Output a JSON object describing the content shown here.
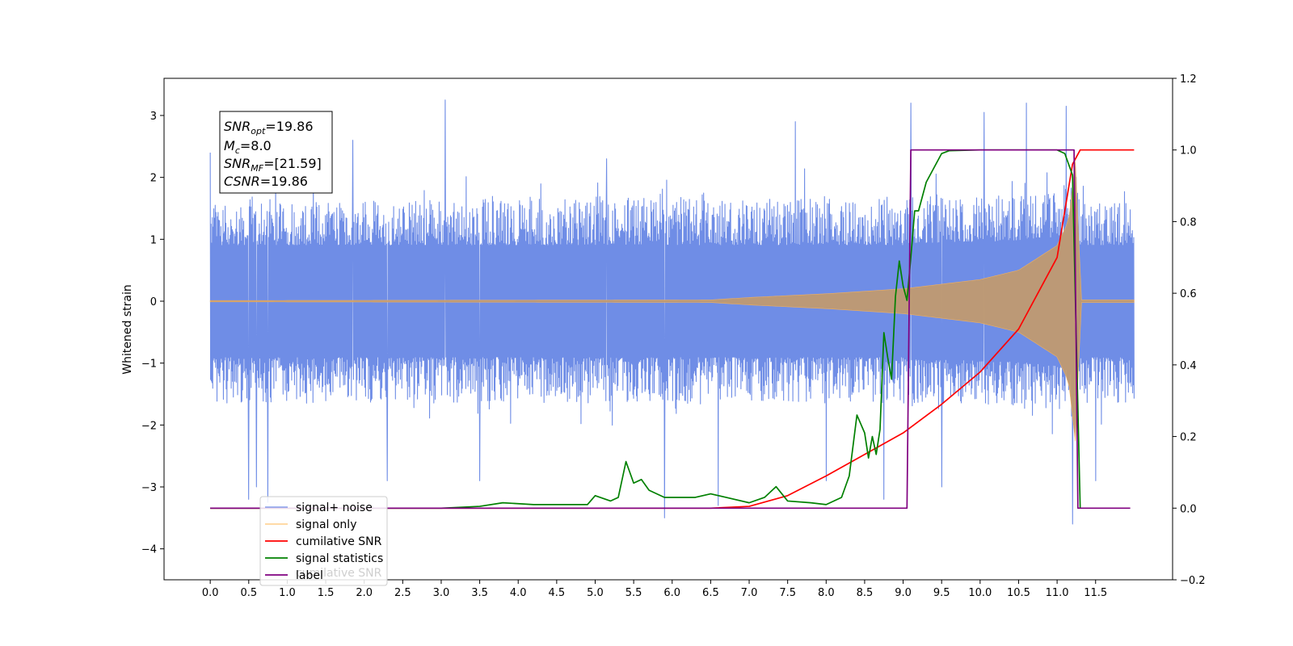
{
  "chart_data": {
    "type": "line",
    "title": "",
    "xlabel": "",
    "ylabel": "Whitened strain",
    "x_range": [
      -0.6,
      12.5
    ],
    "ylim_left": [
      -4.5,
      3.6
    ],
    "ylim_right": [
      -0.2,
      1.2
    ],
    "x_ticks": [
      0.0,
      0.5,
      1.0,
      1.5,
      2.0,
      2.5,
      3.0,
      3.5,
      4.0,
      4.5,
      5.0,
      5.5,
      6.0,
      6.5,
      7.0,
      7.5,
      8.0,
      8.5,
      9.0,
      9.5,
      10.0,
      10.5,
      11.0,
      11.5
    ],
    "x_tick_labels": [
      "0.0",
      "0.5",
      "1.0",
      "1.5",
      "2.0",
      "2.5",
      "3.0",
      "3.5",
      "4.0",
      "4.5",
      "5.0",
      "5.5",
      "6.0",
      "6.5",
      "7.0",
      "7.5",
      "8.0",
      "8.5",
      "9.0",
      "9.5",
      "10.0",
      "10.5",
      "11.0",
      "11.5"
    ],
    "y_ticks_left": [
      3,
      2,
      1,
      0,
      -1,
      -2,
      -3,
      -4
    ],
    "y_tick_labels_left": [
      "3",
      "2",
      "1",
      "0",
      "−1",
      "−2",
      "−3",
      "−4"
    ],
    "y_ticks_right": [
      1.2,
      1.0,
      0.8,
      0.6,
      0.4,
      0.2,
      0.0,
      -0.2
    ],
    "y_tick_labels_right": [
      "1.2",
      "1.0",
      "0.8",
      "0.6",
      "0.4",
      "0.2",
      "0.0",
      "−0.2"
    ],
    "grid": false,
    "legend_position": "lower-left",
    "series": [
      {
        "name": "signal+ noise",
        "axis": "left",
        "color": "#6f8de6",
        "style": "dense noise band",
        "t_start": 0.0,
        "t_end": 12.0,
        "band_typical": [
          -1.5,
          1.5
        ],
        "peaks_high": [
          [
            0.0,
            2.4
          ],
          [
            0.75,
            1.9
          ],
          [
            1.85,
            2.6
          ],
          [
            3.05,
            3.25
          ],
          [
            5.15,
            2.3
          ],
          [
            7.6,
            2.9
          ],
          [
            9.1,
            3.2
          ],
          [
            10.05,
            3.05
          ],
          [
            10.6,
            3.2
          ],
          [
            11.12,
            3.15
          ]
        ],
        "peaks_low": [
          [
            0.5,
            -3.2
          ],
          [
            0.6,
            -3.0
          ],
          [
            0.75,
            -3.25
          ],
          [
            2.3,
            -2.9
          ],
          [
            3.5,
            -2.9
          ],
          [
            5.9,
            -3.5
          ],
          [
            6.6,
            -3.3
          ],
          [
            8.0,
            -2.9
          ],
          [
            8.75,
            -3.2
          ],
          [
            9.5,
            -3.0
          ],
          [
            11.2,
            -3.6
          ],
          [
            11.5,
            -2.9
          ]
        ]
      },
      {
        "name": "signal only",
        "axis": "left",
        "color": "#c09a70",
        "style": "chirp envelope",
        "t_start": 0.0,
        "t_merge": 11.25,
        "t_end": 12.0,
        "envelope": [
          [
            0.0,
            0.01
          ],
          [
            6.5,
            0.02
          ],
          [
            7.0,
            0.06
          ],
          [
            8.0,
            0.12
          ],
          [
            9.0,
            0.2
          ],
          [
            10.0,
            0.35
          ],
          [
            10.5,
            0.5
          ],
          [
            11.0,
            0.9
          ],
          [
            11.15,
            1.3
          ],
          [
            11.25,
            2.4
          ],
          [
            11.3,
            0.02
          ],
          [
            12.0,
            0.02
          ]
        ]
      },
      {
        "name": "cumilative SNR",
        "axis": "right",
        "color": "#ff0000",
        "x": [
          0.0,
          6.5,
          7.0,
          7.5,
          8.0,
          8.5,
          9.0,
          9.5,
          10.0,
          10.5,
          11.0,
          11.2,
          11.3,
          12.0
        ],
        "y": [
          0.0,
          0.0,
          0.005,
          0.035,
          0.09,
          0.15,
          0.21,
          0.29,
          0.38,
          0.5,
          0.7,
          0.96,
          1.0,
          1.0
        ]
      },
      {
        "name": "signal statistics",
        "axis": "right",
        "color": "#008000",
        "x": [
          0.0,
          3.0,
          3.5,
          3.8,
          4.2,
          4.6,
          4.9,
          5.0,
          5.2,
          5.3,
          5.4,
          5.5,
          5.6,
          5.7,
          5.9,
          6.1,
          6.3,
          6.5,
          6.7,
          7.0,
          7.2,
          7.35,
          7.5,
          7.8,
          8.0,
          8.2,
          8.3,
          8.4,
          8.5,
          8.55,
          8.6,
          8.65,
          8.7,
          8.75,
          8.8,
          8.85,
          8.9,
          8.95,
          9.0,
          9.05,
          9.1,
          9.15,
          9.2,
          9.25,
          9.3,
          9.4,
          9.5,
          9.6,
          9.8,
          10.0,
          11.0,
          11.1,
          11.2,
          11.3
        ],
        "y": [
          0.0,
          0.0,
          0.005,
          0.015,
          0.01,
          0.01,
          0.01,
          0.035,
          0.02,
          0.03,
          0.13,
          0.07,
          0.08,
          0.05,
          0.03,
          0.03,
          0.03,
          0.04,
          0.03,
          0.015,
          0.03,
          0.06,
          0.02,
          0.015,
          0.01,
          0.03,
          0.09,
          0.26,
          0.21,
          0.14,
          0.2,
          0.15,
          0.22,
          0.49,
          0.42,
          0.36,
          0.59,
          0.69,
          0.62,
          0.58,
          0.7,
          0.83,
          0.83,
          0.87,
          0.91,
          0.95,
          0.99,
          0.998,
          0.999,
          1.0,
          1.0,
          0.99,
          0.93,
          0.0
        ]
      },
      {
        "name": "label",
        "axis": "right",
        "color": "#800080",
        "x": [
          0.0,
          9.05,
          9.1,
          11.22,
          11.27,
          11.95
        ],
        "y": [
          0.0,
          0.0,
          1.0,
          1.0,
          0.0,
          0.0
        ]
      }
    ],
    "legend_entries": [
      "signal+ noise",
      "signal only",
      "cumilative SNR",
      "signal statistics",
      "label"
    ],
    "legend_shadow_text": "cumilative SNR",
    "annotations": {
      "snr_opt_base": "SNR",
      "snr_opt_sub": "opt",
      "snr_opt_value": "=19.86",
      "mc_base": "M",
      "mc_sub": "c",
      "mc_value": "=8.0",
      "snr_mf_base": "SNR",
      "snr_mf_sub": "MF",
      "snr_mf_value": "=[21.59]",
      "csnr_base": "CSNR",
      "csnr_value": "=19.86"
    }
  }
}
